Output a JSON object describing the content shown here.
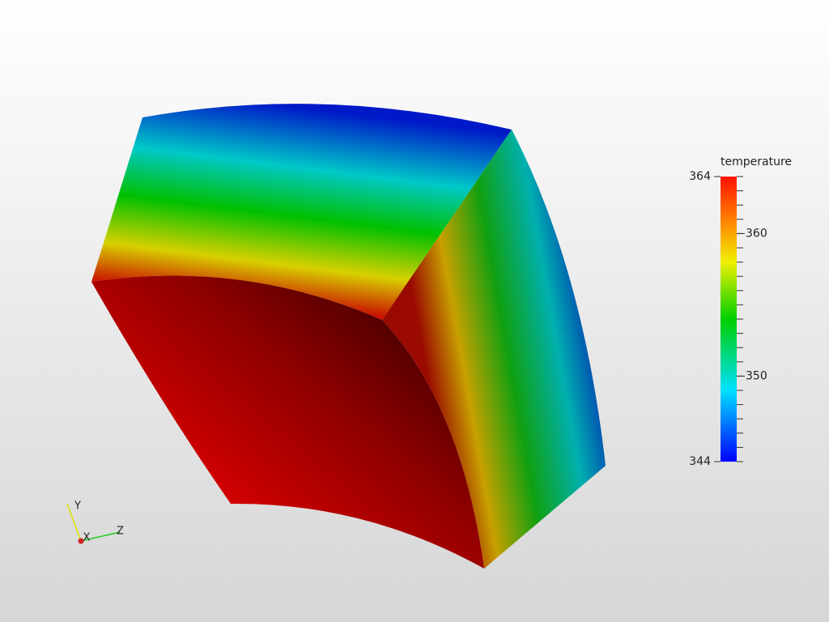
{
  "colorbar": {
    "title": "temperature",
    "ticks": [
      344,
      350,
      360,
      364
    ]
  },
  "axes": {
    "x": "X",
    "y": "Y",
    "z": "Z"
  }
}
